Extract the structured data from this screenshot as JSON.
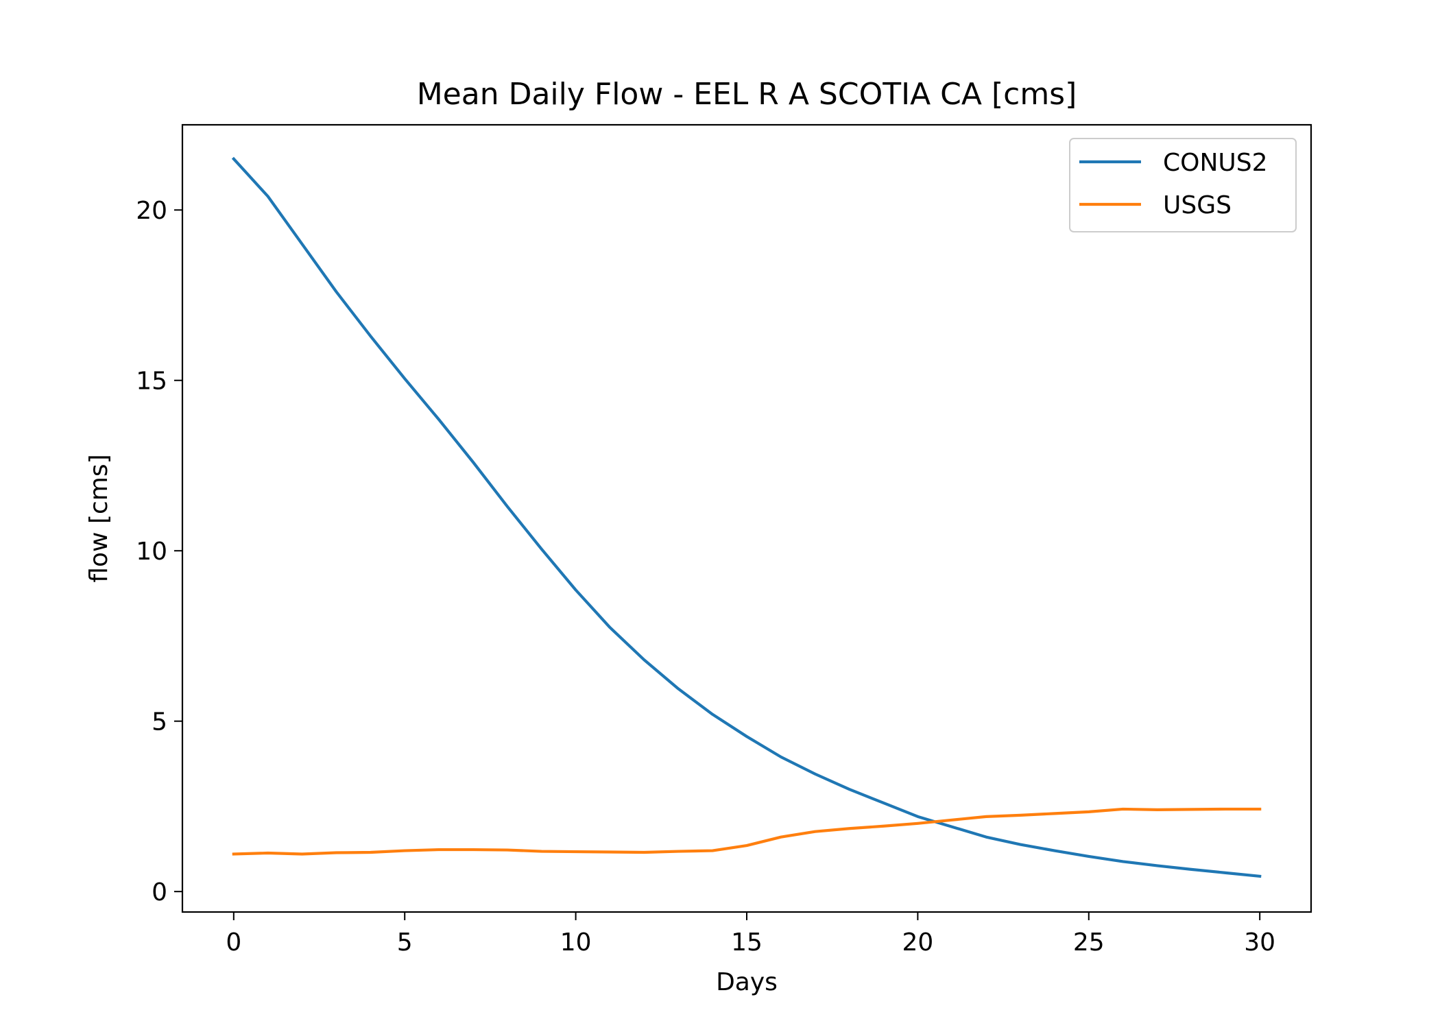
{
  "chart_data": {
    "type": "line",
    "title": "Mean Daily Flow - EEL R A SCOTIA CA [cms]",
    "xlabel": "Days",
    "ylabel": "flow [cms]",
    "xlim": [
      -1.5,
      31.5
    ],
    "ylim": [
      -0.6,
      22.5
    ],
    "xticks": [
      0,
      5,
      10,
      15,
      20,
      25,
      30
    ],
    "yticks": [
      0,
      5,
      10,
      15,
      20
    ],
    "grid": false,
    "legend_position": "top-right",
    "x": [
      0,
      1,
      2,
      3,
      4,
      5,
      6,
      7,
      8,
      9,
      10,
      11,
      12,
      13,
      14,
      15,
      16,
      17,
      18,
      19,
      20,
      21,
      22,
      23,
      24,
      25,
      26,
      27,
      28,
      29,
      30
    ],
    "series": [
      {
        "name": "CONUS2",
        "color": "#1f77b4",
        "values": [
          21.5,
          20.4,
          19.0,
          17.6,
          16.3,
          15.05,
          13.85,
          12.6,
          11.3,
          10.05,
          8.85,
          7.75,
          6.8,
          5.95,
          5.2,
          4.55,
          3.95,
          3.45,
          3.0,
          2.6,
          2.2,
          1.9,
          1.6,
          1.38,
          1.2,
          1.03,
          0.88,
          0.76,
          0.65,
          0.55,
          0.45
        ]
      },
      {
        "name": "USGS",
        "color": "#ff7f0e",
        "values": [
          1.1,
          1.13,
          1.1,
          1.14,
          1.15,
          1.2,
          1.23,
          1.23,
          1.22,
          1.18,
          1.17,
          1.16,
          1.15,
          1.18,
          1.2,
          1.35,
          1.6,
          1.76,
          1.85,
          1.92,
          2.0,
          2.1,
          2.2,
          2.24,
          2.29,
          2.34,
          2.42,
          2.4,
          2.41,
          2.42,
          2.42
        ]
      }
    ]
  }
}
